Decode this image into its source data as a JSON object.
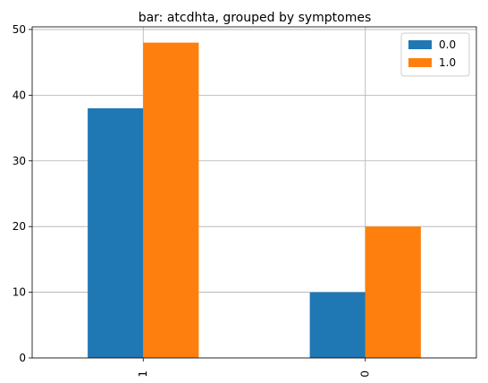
{
  "chart_data": {
    "type": "bar",
    "title": "bar: atcdhta, grouped by symptomes",
    "xlabel": "",
    "ylabel": "",
    "categories": [
      "1",
      "0"
    ],
    "series": [
      {
        "name": "0.0",
        "color": "#1f77b4",
        "values": [
          38,
          10
        ]
      },
      {
        "name": "1.0",
        "color": "#ff7f0e",
        "values": [
          48,
          20
        ]
      }
    ],
    "ylim": [
      0,
      50.4
    ],
    "yticks": [
      0,
      10,
      20,
      30,
      40,
      50
    ],
    "grid": true,
    "legend_position": "top-right",
    "xtick_rotation": "vertical"
  }
}
